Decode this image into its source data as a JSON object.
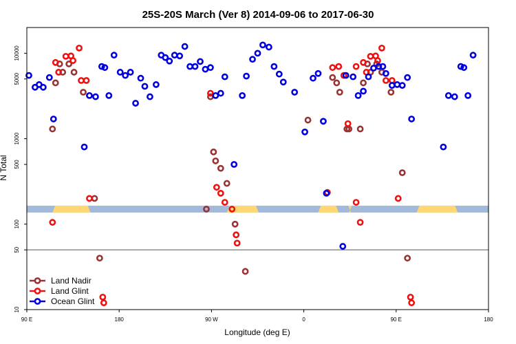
{
  "chart_data": {
    "type": "scatter",
    "title": "25S-20S March (Ver 8)   2014-09-06 to 2017-06-30",
    "xlabel": "Longitude (deg E)",
    "ylabel": "N Total",
    "y_scale": "log",
    "xlim": [
      90,
      540
    ],
    "ylim": [
      10,
      20000
    ],
    "x_ticks": [
      {
        "value": 90,
        "label": "90 E"
      },
      {
        "value": 180,
        "label": "180"
      },
      {
        "value": 270,
        "label": "90 W"
      },
      {
        "value": 360,
        "label": "0"
      },
      {
        "value": 450,
        "label": "90 E"
      },
      {
        "value": 540,
        "label": "180"
      }
    ],
    "y_ticks": [
      {
        "value": 10,
        "label": "10"
      },
      {
        "value": 50,
        "label": "50"
      },
      {
        "value": 100,
        "label": "100"
      },
      {
        "value": 500,
        "label": "500"
      },
      {
        "value": 1000,
        "label": "1000"
      },
      {
        "value": 5000,
        "label": "5000"
      },
      {
        "value": 10000,
        "label": "10000"
      }
    ],
    "reference_line": 50,
    "land_strip": {
      "value": 150,
      "ocean_color": "#a3b9d9",
      "land_color": "#ffd874",
      "land_ranges": [
        [
          115,
          152
        ],
        [
          285,
          316
        ],
        [
          374,
          394
        ],
        [
          404,
          406
        ],
        [
          470,
          510
        ]
      ]
    },
    "legend": "bottom-left",
    "series": [
      {
        "name": "Land Nadir",
        "color": "#993333",
        "points": [
          [
            115,
            1300
          ],
          [
            118,
            4500
          ],
          [
            122,
            7500
          ],
          [
            125,
            6000
          ],
          [
            131,
            7500
          ],
          [
            136,
            6000
          ],
          [
            145,
            3500
          ],
          [
            156,
            200
          ],
          [
            161,
            40
          ],
          [
            265,
            150
          ],
          [
            269,
            3100
          ],
          [
            272,
            700
          ],
          [
            274,
            550
          ],
          [
            279,
            450
          ],
          [
            285,
            300
          ],
          [
            293,
            100
          ],
          [
            303,
            28
          ],
          [
            364,
            1650
          ],
          [
            388,
            5200
          ],
          [
            392,
            4500
          ],
          [
            395,
            3500
          ],
          [
            402,
            1300
          ],
          [
            404,
            1300
          ],
          [
            415,
            1300
          ],
          [
            418,
            4500
          ],
          [
            422,
            7500
          ],
          [
            425,
            6000
          ],
          [
            431,
            7500
          ],
          [
            436,
            6000
          ],
          [
            445,
            3500
          ],
          [
            456,
            400
          ],
          [
            461,
            40
          ]
        ]
      },
      {
        "name": "Land Glint",
        "color": "#ee1111",
        "points": [
          [
            115,
            105
          ],
          [
            118,
            7800
          ],
          [
            121,
            6000
          ],
          [
            128,
            9200
          ],
          [
            133,
            9300
          ],
          [
            135,
            8200
          ],
          [
            141,
            11500
          ],
          [
            143,
            4800
          ],
          [
            148,
            4800
          ],
          [
            151,
            200
          ],
          [
            164,
            14
          ],
          [
            165,
            12
          ],
          [
            269,
            3400
          ],
          [
            275,
            270
          ],
          [
            279,
            230
          ],
          [
            283,
            180
          ],
          [
            290,
            150
          ],
          [
            294,
            75
          ],
          [
            295,
            60
          ],
          [
            383,
            235
          ],
          [
            388,
            6800
          ],
          [
            394,
            7000
          ],
          [
            399,
            5500
          ],
          [
            403,
            1500
          ],
          [
            411,
            180
          ],
          [
            411,
            7000
          ],
          [
            415,
            105
          ],
          [
            418,
            7800
          ],
          [
            421,
            6000
          ],
          [
            425,
            9200
          ],
          [
            430,
            9300
          ],
          [
            432,
            8200
          ],
          [
            436,
            11500
          ],
          [
            440,
            4800
          ],
          [
            446,
            4800
          ],
          [
            452,
            200
          ],
          [
            464,
            14
          ],
          [
            465,
            12
          ]
        ]
      },
      {
        "name": "Ocean Glint",
        "color": "#0000dd",
        "points": [
          [
            92,
            5500
          ],
          [
            98,
            4000
          ],
          [
            102,
            4300
          ],
          [
            106,
            4000
          ],
          [
            112,
            5200
          ],
          [
            116,
            1700
          ],
          [
            146,
            800
          ],
          [
            151,
            3200
          ],
          [
            157,
            3100
          ],
          [
            163,
            7000
          ],
          [
            166,
            6800
          ],
          [
            170,
            3200
          ],
          [
            175,
            9500
          ],
          [
            181,
            6000
          ],
          [
            186,
            5500
          ],
          [
            191,
            6000
          ],
          [
            196,
            2600
          ],
          [
            201,
            5100
          ],
          [
            205,
            4100
          ],
          [
            210,
            3100
          ],
          [
            216,
            4300
          ],
          [
            221,
            9500
          ],
          [
            225,
            8900
          ],
          [
            229,
            8100
          ],
          [
            234,
            9500
          ],
          [
            239,
            9300
          ],
          [
            244,
            12000
          ],
          [
            249,
            7000
          ],
          [
            254,
            7000
          ],
          [
            259,
            8000
          ],
          [
            264,
            6500
          ],
          [
            269,
            6800
          ],
          [
            274,
            3200
          ],
          [
            279,
            3400
          ],
          [
            283,
            5300
          ],
          [
            292,
            500
          ],
          [
            300,
            3200
          ],
          [
            304,
            5400
          ],
          [
            310,
            8500
          ],
          [
            315,
            10000
          ],
          [
            320,
            12500
          ],
          [
            326,
            11800
          ],
          [
            331,
            7000
          ],
          [
            336,
            5700
          ],
          [
            340,
            4600
          ],
          [
            351,
            3500
          ],
          [
            361,
            1200
          ],
          [
            369,
            5100
          ],
          [
            374,
            5800
          ],
          [
            379,
            1600
          ],
          [
            382,
            230
          ],
          [
            398,
            55
          ],
          [
            401,
            5500
          ],
          [
            408,
            5300
          ],
          [
            413,
            3200
          ],
          [
            418,
            3600
          ],
          [
            423,
            5300
          ],
          [
            428,
            6700
          ],
          [
            433,
            7000
          ],
          [
            437,
            7000
          ],
          [
            440,
            5800
          ],
          [
            446,
            4200
          ],
          [
            451,
            4300
          ],
          [
            456,
            4200
          ],
          [
            461,
            5200
          ],
          [
            465,
            1700
          ],
          [
            496,
            800
          ],
          [
            501,
            3200
          ],
          [
            507,
            3100
          ],
          [
            513,
            7000
          ],
          [
            516,
            6800
          ],
          [
            520,
            3200
          ],
          [
            525,
            9500
          ]
        ]
      }
    ]
  }
}
